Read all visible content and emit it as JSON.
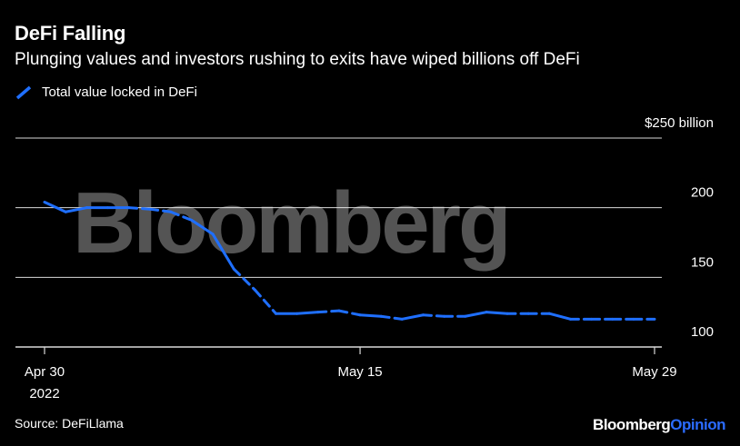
{
  "header": {
    "title": "DeFi Falling",
    "subtitle": "Plunging values and investors rushing to exits have wiped billions off DeFi"
  },
  "footer": {
    "source": "Source: DeFiLlama",
    "brand_main": "Bloomberg",
    "brand_sub": "Opinion"
  },
  "watermark": "Bloomberg",
  "colors": {
    "line": "#1f6fff",
    "grid": "#d9d9d9",
    "background": "#000000",
    "accent": "#2b6cff"
  },
  "chart_data": {
    "type": "line",
    "title": "DeFi Falling",
    "subtitle": "Plunging values and investors rushing to exits have wiped billions off DeFi",
    "x_unit": "day",
    "x_start_label": "2022-04-30",
    "xlim": [
      0,
      29
    ],
    "ylim": [
      100,
      250
    ],
    "y_ticks": [
      {
        "value": 250,
        "label": "$250 billion"
      },
      {
        "value": 200,
        "label": "200"
      },
      {
        "value": 150,
        "label": "150"
      },
      {
        "value": 100,
        "label": "100"
      }
    ],
    "x_ticks": [
      {
        "value": 0,
        "label": "Apr 30",
        "sublabel": "2022"
      },
      {
        "value": 15,
        "label": "May 15",
        "sublabel": ""
      },
      {
        "value": 29,
        "label": "May 29",
        "sublabel": ""
      }
    ],
    "grid": true,
    "legend": "top-left",
    "series": [
      {
        "name": "Total value locked in DeFi",
        "x": [
          0,
          1,
          2,
          3,
          4,
          5,
          6,
          7,
          8,
          9,
          10,
          11,
          12,
          13,
          14,
          15,
          16,
          17,
          18,
          19,
          20,
          21,
          22,
          23,
          24,
          25,
          26,
          27,
          28,
          29
        ],
        "values": [
          204,
          197,
          200,
          200,
          200,
          199,
          197,
          191,
          181,
          156,
          141,
          124,
          124,
          125,
          126,
          123,
          122,
          120,
          123,
          122,
          122,
          125,
          124,
          124,
          124,
          120,
          120,
          120,
          120,
          120
        ]
      }
    ]
  }
}
